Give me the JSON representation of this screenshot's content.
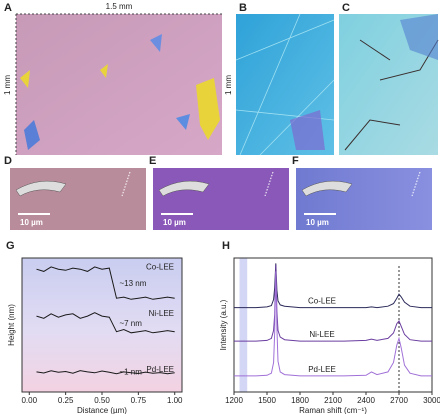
{
  "panels": [
    {
      "label": "A",
      "annotations": [
        "1.5 mm",
        "1 mm"
      ]
    },
    {
      "label": "B",
      "annotations": [
        "1 mm"
      ]
    },
    {
      "label": "C"
    },
    {
      "label": "D",
      "annotations": [
        "10 µm"
      ]
    },
    {
      "label": "E",
      "annotations": [
        "10 µm"
      ]
    },
    {
      "label": "F",
      "annotations": [
        "10 µm"
      ]
    }
  ],
  "chart_data": [
    {
      "panel_label": "G",
      "type": "line",
      "xlabel": "Distance (µm)",
      "ylabel": "Height (nm)",
      "x": [
        0.05,
        0.1,
        0.15,
        0.2,
        0.25,
        0.3,
        0.35,
        0.4,
        0.45,
        0.5,
        0.55,
        0.6,
        0.65,
        0.7,
        0.75,
        0.8,
        0.85,
        0.9,
        0.95,
        1.0
      ],
      "xlim": [
        -0.05,
        1.05
      ],
      "xticks": [
        {
          "value": 0,
          "label": "0.00"
        },
        {
          "value": 0.25,
          "label": "0.25"
        },
        {
          "value": 0.5,
          "label": "0.50"
        },
        {
          "value": 0.75,
          "label": "0.75"
        },
        {
          "value": 1,
          "label": "1.00"
        }
      ],
      "ylim": [
        0,
        60
      ],
      "series": [
        {
          "name": "Co-LEE",
          "color": "#1a1a1a",
          "step_label": "~13 nm",
          "values": [
            55,
            54,
            56,
            55,
            54.5,
            55.5,
            55,
            54,
            56,
            55,
            55.5,
            42,
            42.5,
            41.5,
            42,
            42.5,
            41.5,
            42,
            42.5,
            42
          ]
        },
        {
          "name": "Ni-LEE",
          "color": "#1a1a1a",
          "step_label": "~7 nm",
          "values": [
            34,
            33,
            35,
            33.5,
            34.5,
            35,
            33,
            34,
            35.5,
            34,
            33.5,
            27,
            28,
            26.5,
            27,
            27.5,
            26.5,
            27,
            27.5,
            27
          ]
        },
        {
          "name": "Pd-LEE",
          "color": "#1a1a1a",
          "step_label": "~1 nm",
          "values": [
            9,
            8.5,
            9.5,
            8.8,
            9.2,
            8.4,
            9.6,
            9,
            8.6,
            9.4,
            8.8,
            8.2,
            9,
            8.6,
            8.3,
            8.9,
            8.4,
            8.7,
            8.2,
            8.6
          ]
        }
      ]
    },
    {
      "panel_label": "H",
      "type": "line",
      "xlabel": "Raman shift (cm⁻¹)",
      "ylabel": "Intensity (a.u.)",
      "x": [
        1200,
        1300,
        1400,
        1500,
        1540,
        1560,
        1570,
        1580,
        1590,
        1600,
        1620,
        1660,
        1800,
        2000,
        2200,
        2400,
        2450,
        2500,
        2600,
        2650,
        2680,
        2700,
        2720,
        2750,
        2800,
        2900,
        3000
      ],
      "xlim": [
        1200,
        3000
      ],
      "xticks": [
        1200,
        1500,
        1800,
        2100,
        2400,
        2700,
        3000
      ],
      "ylim": [
        0,
        10
      ],
      "highlight": [
        1250,
        1320
      ],
      "reference_line": 2700,
      "series": [
        {
          "name": "Co-LEE",
          "color": "#2b2a5a",
          "values": [
            6.3,
            6.3,
            6.3,
            6.35,
            6.45,
            6.9,
            7.8,
            9.6,
            7.6,
            6.8,
            6.5,
            6.4,
            6.3,
            6.3,
            6.3,
            6.3,
            6.35,
            6.3,
            6.4,
            6.6,
            7.0,
            7.3,
            7.1,
            6.7,
            6.4,
            6.3,
            6.3
          ]
        },
        {
          "name": "Ni-LEE",
          "color": "#6a3da0",
          "values": [
            3.8,
            3.8,
            3.8,
            3.85,
            4.0,
            4.6,
            5.8,
            9.5,
            6.0,
            4.6,
            4.1,
            3.9,
            3.8,
            3.8,
            3.8,
            3.85,
            3.95,
            3.85,
            4.0,
            4.4,
            5.1,
            5.3,
            4.9,
            4.3,
            3.9,
            3.8,
            3.8
          ]
        },
        {
          "name": "Pd-LEE",
          "color": "#a070d8",
          "values": [
            1.2,
            1.2,
            1.2,
            1.25,
            1.4,
            2.2,
            4.5,
            9.0,
            4.8,
            2.3,
            1.5,
            1.3,
            1.2,
            1.2,
            1.2,
            1.25,
            1.5,
            1.3,
            1.5,
            2.2,
            3.5,
            4.0,
            3.3,
            2.0,
            1.4,
            1.2,
            1.2
          ]
        }
      ]
    }
  ]
}
